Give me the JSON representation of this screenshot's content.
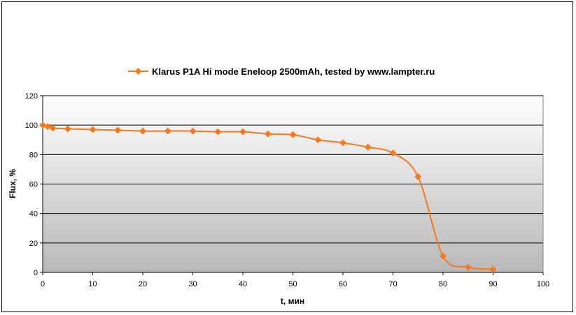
{
  "chart_data": {
    "type": "line",
    "series": [
      {
        "name": "Klarus P1A Hi mode Eneloop 2500mAh, tested by www.lampter.ru",
        "color": "#f47a20",
        "marker": "diamond",
        "x": [
          0,
          1,
          2,
          5,
          10,
          15,
          20,
          25,
          30,
          35,
          40,
          45,
          50,
          55,
          60,
          65,
          70,
          75,
          80,
          85,
          90
        ],
        "y": [
          100,
          99,
          98,
          97.5,
          97,
          96.5,
          96,
          96,
          96,
          95.5,
          95.5,
          94,
          93.5,
          90,
          88,
          85,
          81,
          65,
          11,
          3.5,
          2
        ]
      }
    ],
    "xlabel": "t, мин",
    "ylabel": "Flux, %",
    "xlim": [
      0,
      100
    ],
    "ylim": [
      0,
      120
    ],
    "xticks": [
      "0",
      "10",
      "20",
      "30",
      "40",
      "50",
      "60",
      "70",
      "80",
      "90",
      "100"
    ],
    "yticks": [
      "0",
      "20",
      "40",
      "60",
      "80",
      "100",
      "120"
    ],
    "grid": "horizontal",
    "legend_position": "top",
    "background": "gradient-white-to-gray"
  }
}
